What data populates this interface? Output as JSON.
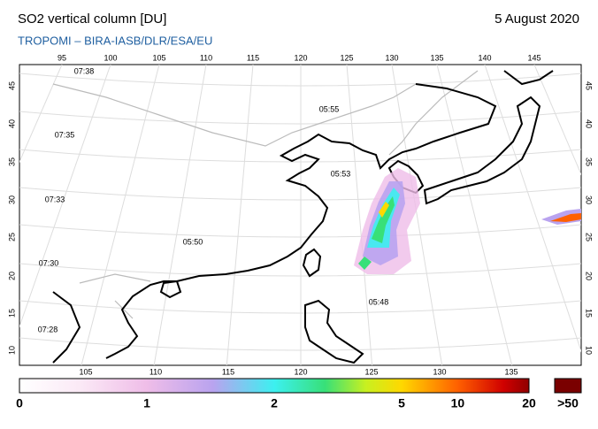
{
  "header": {
    "title": "SO2 vertical column [DU]",
    "date": "5 August 2020",
    "subtitle": "TROPOMI  –  BIRA-IASB/DLR/ESA/EU"
  },
  "map": {
    "top_lon_labels": [
      95,
      100,
      105,
      110,
      115,
      120,
      125,
      130,
      135,
      140,
      145
    ],
    "bottom_lon_labels": [
      105,
      110,
      115,
      120,
      125,
      130,
      135
    ],
    "left_lat_labels": [
      45,
      40,
      35,
      30,
      25,
      20,
      15,
      10
    ],
    "right_lat_labels": [
      45,
      40,
      35,
      30,
      25,
      20,
      15,
      10
    ],
    "orbit_times": [
      "07:38",
      "05:55",
      "07:35",
      "05:53",
      "07:33",
      "05:50",
      "07:30",
      "05:48",
      "07:28"
    ]
  },
  "colorbar": {
    "ticks": [
      0,
      1,
      2,
      5,
      10,
      20
    ],
    "overflow_label": ">50"
  }
}
